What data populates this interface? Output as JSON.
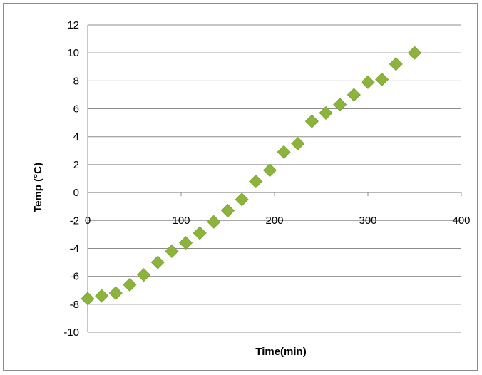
{
  "chart_data": {
    "type": "scatter",
    "title": "",
    "xlabel": "Time(min)",
    "ylabel": "Temp (°C)",
    "xlim": [
      0,
      400
    ],
    "ylim": [
      -10,
      12
    ],
    "xticks": [
      0,
      100,
      200,
      300,
      400
    ],
    "yticks": [
      -10,
      -8,
      -6,
      -4,
      -2,
      0,
      2,
      4,
      6,
      8,
      10,
      12
    ],
    "xtick_labels": [
      "0",
      "100",
      "200",
      "300",
      "400"
    ],
    "ytick_labels": [
      "-10",
      "-8",
      "-6",
      "-4",
      "-2",
      "0",
      "2",
      "4",
      "6",
      "8",
      "10",
      "12"
    ],
    "grid": "horizontal",
    "legend": "none",
    "marker": "diamond",
    "marker_color": "#8bb43c",
    "series": [
      {
        "x": [
          0,
          15,
          30,
          45,
          60,
          75,
          90,
          105,
          120,
          135,
          150,
          165,
          180,
          195,
          210,
          225,
          240,
          255,
          270,
          285,
          300,
          315,
          330,
          350
        ],
        "y": [
          -7.6,
          -7.4,
          -7.2,
          -6.6,
          -5.9,
          -5.0,
          -4.2,
          -3.6,
          -2.9,
          -2.1,
          -1.3,
          -0.5,
          0.8,
          1.6,
          2.9,
          3.5,
          5.1,
          5.7,
          6.3,
          7.0,
          7.9,
          8.1,
          9.2,
          10.0
        ]
      }
    ]
  }
}
